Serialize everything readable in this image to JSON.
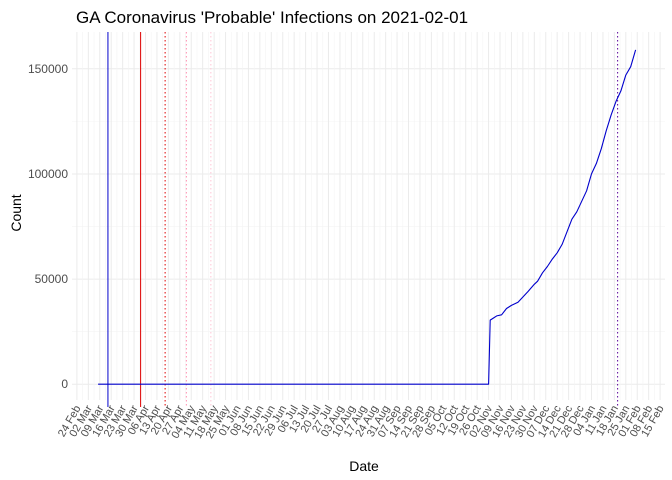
{
  "chart_data": {
    "type": "line",
    "title": "GA Coronavirus 'Probable' Infections on 2021-02-01",
    "xlabel": "Date",
    "ylabel": "Count",
    "xlim": [
      "2020-02-21",
      "2021-02-18"
    ],
    "ylim": [
      -7500,
      167500
    ],
    "y_ticks": [
      0,
      50000,
      100000,
      150000
    ],
    "y_tick_labels": [
      "0",
      "50000",
      "100000",
      "150000"
    ],
    "x_ticks": [
      "2020-02-24",
      "2020-03-02",
      "2020-03-09",
      "2020-03-16",
      "2020-03-23",
      "2020-03-30",
      "2020-04-06",
      "2020-04-13",
      "2020-04-20",
      "2020-04-27",
      "2020-05-04",
      "2020-05-11",
      "2020-05-18",
      "2020-05-25",
      "2020-06-01",
      "2020-06-08",
      "2020-06-15",
      "2020-06-22",
      "2020-06-29",
      "2020-07-06",
      "2020-07-13",
      "2020-07-20",
      "2020-07-27",
      "2020-08-03",
      "2020-08-10",
      "2020-08-17",
      "2020-08-24",
      "2020-08-31",
      "2020-09-07",
      "2020-09-14",
      "2020-09-21",
      "2020-09-28",
      "2020-10-05",
      "2020-10-12",
      "2020-10-19",
      "2020-10-26",
      "2020-11-02",
      "2020-11-09",
      "2020-11-16",
      "2020-11-23",
      "2020-11-30",
      "2020-12-07",
      "2020-12-14",
      "2020-12-21",
      "2020-12-28",
      "2021-01-04",
      "2021-01-11",
      "2021-01-18",
      "2021-01-25",
      "2021-02-01",
      "2021-02-08",
      "2021-02-15"
    ],
    "x_tick_labels": [
      "24 Feb",
      "02 Mar",
      "09 Mar",
      "16 Mar",
      "23 Mar",
      "30 Mar",
      "06 Apr",
      "13 Apr",
      "20 Apr",
      "27 Apr",
      "04 May",
      "11 May",
      "18 May",
      "25 May",
      "01 Jun",
      "08 Jun",
      "15 Jun",
      "22 Jun",
      "29 Jun",
      "06 Jul",
      "13 Jul",
      "20 Jul",
      "27 Jul",
      "03 Aug",
      "10 Aug",
      "17 Aug",
      "24 Aug",
      "31 Aug",
      "07 Sep",
      "14 Sep",
      "21 Sep",
      "28 Sep",
      "05 Oct",
      "12 Oct",
      "19 Oct",
      "26 Oct",
      "02 Nov",
      "09 Nov",
      "16 Nov",
      "23 Nov",
      "30 Nov",
      "07 Dec",
      "14 Dec",
      "21 Dec",
      "28 Dec",
      "04 Jan",
      "11 Jan",
      "18 Jan",
      "25 Jan",
      "01 Feb",
      "08 Feb",
      "15 Feb"
    ],
    "grid": true,
    "reference_lines": [
      {
        "date": "2020-03-14",
        "color": "#0000cc",
        "style": "solid"
      },
      {
        "date": "2020-04-03",
        "color": "#dd0000",
        "style": "solid"
      },
      {
        "date": "2020-04-18",
        "color": "#dd0000",
        "style": "dotted"
      },
      {
        "date": "2020-05-01",
        "color": "#ff8fb0",
        "style": "dotted"
      },
      {
        "date": "2020-05-16",
        "color": "#ffc6d6",
        "style": "dotted"
      },
      {
        "date": "2021-01-20",
        "color": "#5a0099",
        "style": "dotted"
      }
    ],
    "series": [
      {
        "color": "#0000cc",
        "points": [
          [
            "2020-03-08",
            0
          ],
          [
            "2020-11-02",
            0
          ],
          [
            "2020-11-03",
            30500
          ],
          [
            "2020-11-05",
            31500
          ],
          [
            "2020-11-07",
            32500
          ],
          [
            "2020-11-10",
            33000
          ],
          [
            "2020-11-13",
            36000
          ],
          [
            "2020-11-16",
            37500
          ],
          [
            "2020-11-20",
            39000
          ],
          [
            "2020-11-23",
            41500
          ],
          [
            "2020-11-26",
            44000
          ],
          [
            "2020-11-30",
            47500
          ],
          [
            "2020-12-02",
            49000
          ],
          [
            "2020-12-05",
            53000
          ],
          [
            "2020-12-08",
            56000
          ],
          [
            "2020-12-11",
            59500
          ],
          [
            "2020-12-14",
            62500
          ],
          [
            "2020-12-17",
            66500
          ],
          [
            "2020-12-20",
            72500
          ],
          [
            "2020-12-23",
            78500
          ],
          [
            "2020-12-26",
            82000
          ],
          [
            "2020-12-29",
            87000
          ],
          [
            "2021-01-01",
            92000
          ],
          [
            "2021-01-04",
            100000
          ],
          [
            "2021-01-07",
            105000
          ],
          [
            "2021-01-10",
            112000
          ],
          [
            "2021-01-13",
            120500
          ],
          [
            "2021-01-16",
            128000
          ],
          [
            "2021-01-19",
            134500
          ],
          [
            "2021-01-22",
            139500
          ],
          [
            "2021-01-25",
            147000
          ],
          [
            "2021-01-28",
            151000
          ],
          [
            "2021-01-31",
            159000
          ]
        ]
      }
    ]
  }
}
